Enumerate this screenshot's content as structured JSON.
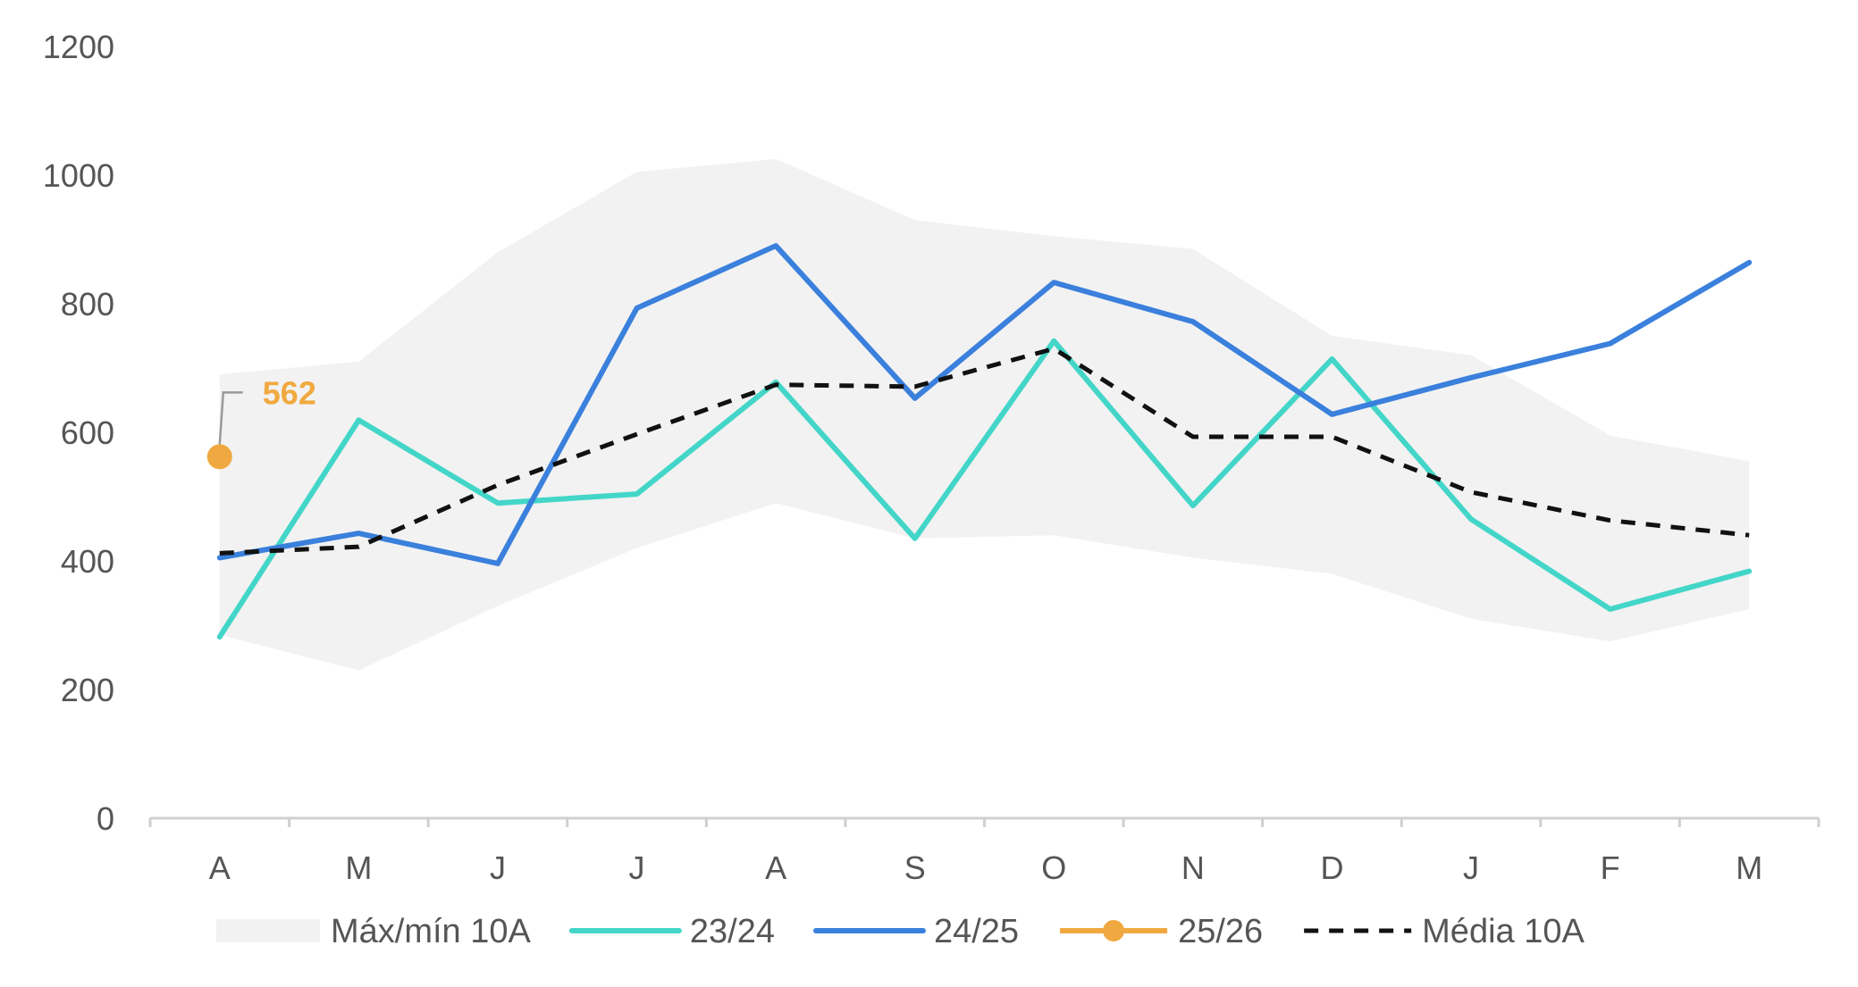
{
  "chart_data": {
    "type": "line",
    "categories": [
      "A",
      "M",
      "J",
      "J",
      "A",
      "S",
      "O",
      "N",
      "D",
      "J",
      "F",
      "M"
    ],
    "ylim": [
      0,
      1200
    ],
    "yticks": [
      0,
      200,
      400,
      600,
      800,
      1000,
      1200
    ],
    "grid": false,
    "legend_position": "bottom",
    "band": {
      "name": "Máx/mín 10A",
      "color": "#f2f2f2",
      "upper": [
        690,
        710,
        880,
        1005,
        1025,
        930,
        905,
        885,
        750,
        720,
        595,
        555
      ],
      "lower": [
        285,
        230,
        330,
        420,
        490,
        435,
        440,
        405,
        380,
        310,
        275,
        325
      ]
    },
    "series": [
      {
        "name": "23/24",
        "color": "#43d6c8",
        "style": "solid",
        "values": [
          282,
          619,
          490,
          504,
          678,
          435,
          742,
          486,
          714,
          465,
          325,
          384
        ]
      },
      {
        "name": "24/25",
        "color": "#3a80dc",
        "style": "solid",
        "values": [
          405,
          443,
          396,
          793,
          890,
          653,
          833,
          772,
          628,
          685,
          738,
          864
        ]
      },
      {
        "name": "25/26",
        "color": "#f0a940",
        "style": "marker",
        "values": [
          562,
          null,
          null,
          null,
          null,
          null,
          null,
          null,
          null,
          null,
          null,
          null
        ]
      },
      {
        "name": "Média 10A",
        "color": "#111111",
        "style": "dashed",
        "values": [
          412,
          422,
          518,
          597,
          674,
          671,
          730,
          593,
          593,
          507,
          463,
          440
        ]
      }
    ],
    "annotations": [
      {
        "series": "25/26",
        "index": 0,
        "value": 562,
        "text": "562"
      }
    ]
  }
}
